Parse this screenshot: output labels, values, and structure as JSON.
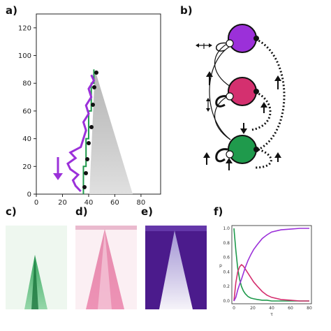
{
  "labels": {
    "a": "a)",
    "b": "b)",
    "c": "c)",
    "d": "d)",
    "e": "e)",
    "f": "f)"
  },
  "colors": {
    "green": "#1f9a4c",
    "magenta": "#d4306f",
    "purple": "#9b30d9",
    "dark_purple": "#4b1b8c",
    "black": "#111111"
  },
  "panel_a": {
    "x_ticks": [
      "0",
      "20",
      "40",
      "60",
      "80"
    ],
    "y_ticks": [
      "0",
      "20",
      "40",
      "60",
      "80",
      "100",
      "120"
    ],
    "xlim": [
      0,
      95
    ],
    "ylim": [
      0,
      130
    ],
    "arrow_icon": "down-arrow-icon"
  },
  "panel_f": {
    "x_ticks": [
      "0",
      "20",
      "40",
      "60",
      "80"
    ],
    "y_ticks": [
      "0.0",
      "0.2",
      "0.4",
      "0.6",
      "0.8",
      "1.0"
    ],
    "xlabel": "τ",
    "ylabel": "p"
  },
  "chart_data": [
    {
      "type": "line",
      "panel": "a",
      "xlim": [
        0,
        95
      ],
      "ylim": [
        0,
        130
      ],
      "series": [
        {
          "color": "#1f9a4c",
          "x": [
            36,
            36,
            38,
            38,
            40,
            40,
            42,
            42,
            44,
            44
          ],
          "y": [
            0,
            20,
            20,
            40,
            40,
            60,
            60,
            80,
            80,
            90
          ]
        },
        {
          "color": "#9b30d9",
          "x": [
            34,
            30,
            28,
            32,
            26,
            24,
            30,
            26,
            34,
            36,
            38,
            36,
            40,
            38,
            42,
            40,
            44,
            42
          ],
          "y": [
            2,
            6,
            10,
            14,
            18,
            22,
            26,
            30,
            34,
            40,
            46,
            52,
            58,
            64,
            70,
            76,
            82,
            86
          ]
        }
      ]
    },
    {
      "type": "line",
      "panel": "f",
      "x": [
        0,
        2,
        4,
        6,
        8,
        10,
        12,
        15,
        18,
        21,
        25,
        30,
        35,
        40,
        50,
        60,
        70,
        80
      ],
      "xlim": [
        0,
        80
      ],
      "ylim": [
        0,
        1.0
      ],
      "series": [
        {
          "color": "#1f9a4c",
          "values": [
            1.0,
            0.7,
            0.45,
            0.3,
            0.2,
            0.14,
            0.1,
            0.06,
            0.04,
            0.03,
            0.02,
            0.01,
            0.01,
            0.0,
            0.0,
            0.0,
            0.0,
            0.0
          ]
        },
        {
          "color": "#d4306f",
          "values": [
            0.0,
            0.25,
            0.4,
            0.47,
            0.5,
            0.48,
            0.44,
            0.38,
            0.32,
            0.26,
            0.2,
            0.13,
            0.08,
            0.05,
            0.02,
            0.01,
            0.0,
            0.0
          ]
        },
        {
          "color": "#9b30d9",
          "values": [
            0.0,
            0.05,
            0.15,
            0.23,
            0.3,
            0.38,
            0.46,
            0.56,
            0.64,
            0.71,
            0.78,
            0.86,
            0.91,
            0.95,
            0.98,
            0.99,
            1.0,
            1.0
          ]
        }
      ]
    }
  ]
}
